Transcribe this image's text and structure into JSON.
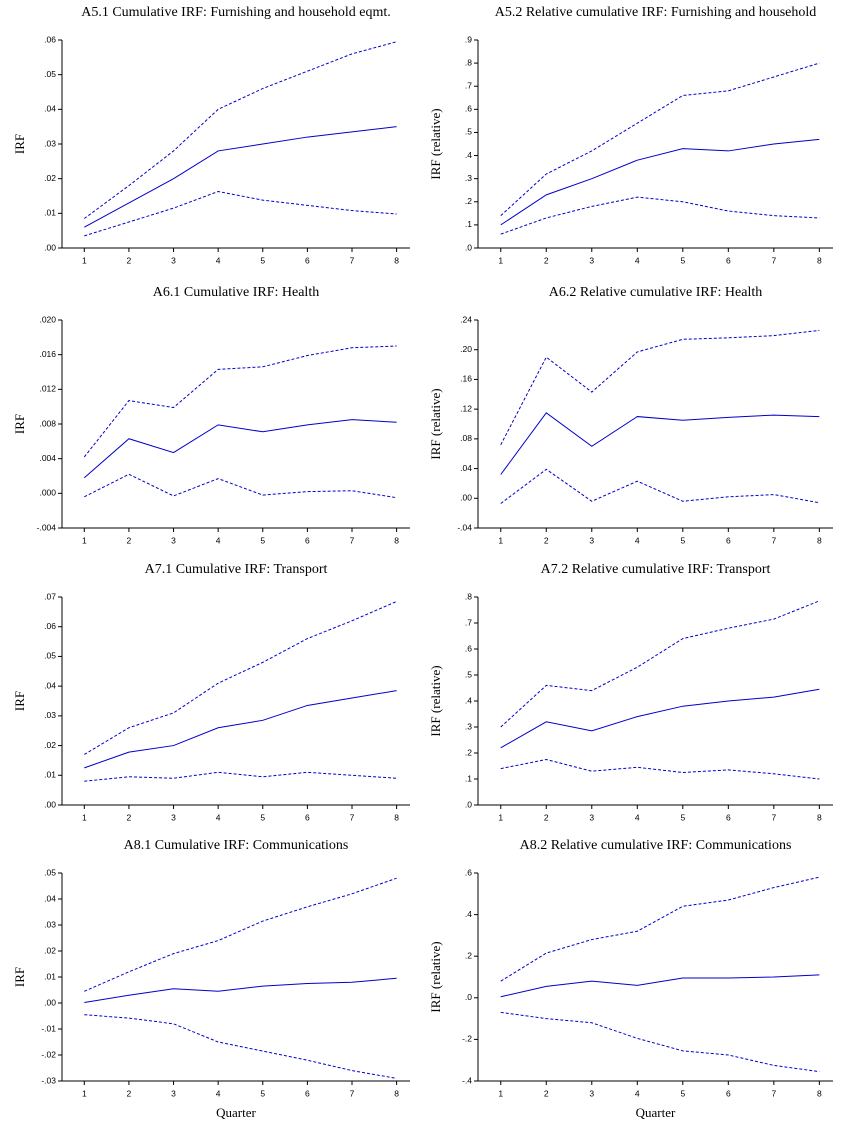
{
  "chart_data": [
    {
      "type": "line",
      "title": "A5.1 Cumulative IRF: Furnishing and household eqmt.",
      "ylabel": "IRF",
      "x": [
        1,
        2,
        3,
        4,
        5,
        6,
        7,
        8
      ],
      "xlim": [
        0.5,
        8.3
      ],
      "xticks": [
        1,
        2,
        3,
        4,
        5,
        6,
        7,
        8
      ],
      "ylim": [
        0,
        0.06
      ],
      "yticks": [
        {
          "value": 0,
          "label": ".00"
        },
        {
          "value": 0.01,
          "label": ".01"
        },
        {
          "value": 0.02,
          "label": ".02"
        },
        {
          "value": 0.03,
          "label": ".03"
        },
        {
          "value": 0.04,
          "label": ".04"
        },
        {
          "value": 0.05,
          "label": ".05"
        },
        {
          "value": 0.06,
          "label": ".06"
        }
      ],
      "series": [
        {
          "color": "#0000cc",
          "dash": false,
          "values": [
            0.006,
            0.013,
            0.02,
            0.028,
            0.03,
            0.032,
            0.0335,
            0.035
          ]
        },
        {
          "color": "#0000cc",
          "dash": true,
          "values": [
            0.0085,
            0.018,
            0.028,
            0.04,
            0.046,
            0.051,
            0.056,
            0.0595
          ]
        },
        {
          "color": "#0000cc",
          "dash": true,
          "values": [
            0.0035,
            0.0075,
            0.0115,
            0.0163,
            0.0138,
            0.0123,
            0.0108,
            0.0098
          ]
        }
      ]
    },
    {
      "type": "line",
      "title": "A5.2 Relative cumulative IRF: Furnishing and household",
      "ylabel": "IRF (relative)",
      "x": [
        1,
        2,
        3,
        4,
        5,
        6,
        7,
        8
      ],
      "xlim": [
        0.5,
        8.3
      ],
      "xticks": [
        1,
        2,
        3,
        4,
        5,
        6,
        7,
        8
      ],
      "ylim": [
        0,
        0.9
      ],
      "yticks": [
        {
          "value": 0,
          "label": ".0"
        },
        {
          "value": 0.1,
          "label": ".1"
        },
        {
          "value": 0.2,
          "label": ".2"
        },
        {
          "value": 0.3,
          "label": ".3"
        },
        {
          "value": 0.4,
          "label": ".4"
        },
        {
          "value": 0.5,
          "label": ".5"
        },
        {
          "value": 0.6,
          "label": ".6"
        },
        {
          "value": 0.7,
          "label": ".7"
        },
        {
          "value": 0.8,
          "label": ".8"
        },
        {
          "value": 0.9,
          "label": ".9"
        }
      ],
      "series": [
        {
          "color": "#0000cc",
          "dash": false,
          "values": [
            0.1,
            0.23,
            0.3,
            0.38,
            0.43,
            0.42,
            0.45,
            0.47
          ]
        },
        {
          "color": "#0000cc",
          "dash": true,
          "values": [
            0.14,
            0.32,
            0.42,
            0.54,
            0.66,
            0.68,
            0.74,
            0.8
          ]
        },
        {
          "color": "#0000cc",
          "dash": true,
          "values": [
            0.06,
            0.13,
            0.18,
            0.22,
            0.2,
            0.16,
            0.14,
            0.13
          ]
        }
      ]
    },
    {
      "type": "line",
      "title": "A6.1 Cumulative IRF: Health",
      "ylabel": "IRF",
      "x": [
        1,
        2,
        3,
        4,
        5,
        6,
        7,
        8
      ],
      "xlim": [
        0.5,
        8.3
      ],
      "xticks": [
        1,
        2,
        3,
        4,
        5,
        6,
        7,
        8
      ],
      "ylim": [
        -0.004,
        0.02
      ],
      "yticks": [
        {
          "value": -0.004,
          "label": "-.004"
        },
        {
          "value": 0,
          "label": ".000"
        },
        {
          "value": 0.004,
          "label": ".004"
        },
        {
          "value": 0.008,
          "label": ".008"
        },
        {
          "value": 0.012,
          "label": ".012"
        },
        {
          "value": 0.016,
          "label": ".016"
        },
        {
          "value": 0.02,
          "label": ".020"
        }
      ],
      "series": [
        {
          "color": "#0000cc",
          "dash": false,
          "values": [
            0.0018,
            0.0063,
            0.0047,
            0.0079,
            0.0071,
            0.0079,
            0.0085,
            0.0082
          ]
        },
        {
          "color": "#0000cc",
          "dash": true,
          "values": [
            0.0042,
            0.0107,
            0.0099,
            0.0143,
            0.0146,
            0.0159,
            0.0168,
            0.017
          ]
        },
        {
          "color": "#0000cc",
          "dash": true,
          "values": [
            -0.0004,
            0.0022,
            -0.0003,
            0.0017,
            -0.0002,
            0.0002,
            0.0003,
            -0.0005
          ]
        }
      ]
    },
    {
      "type": "line",
      "title": "A6.2 Relative cumulative IRF: Health",
      "ylabel": "IRF (relative)",
      "x": [
        1,
        2,
        3,
        4,
        5,
        6,
        7,
        8
      ],
      "xlim": [
        0.5,
        8.3
      ],
      "xticks": [
        1,
        2,
        3,
        4,
        5,
        6,
        7,
        8
      ],
      "ylim": [
        -0.04,
        0.24
      ],
      "yticks": [
        {
          "value": -0.04,
          "label": "-.04"
        },
        {
          "value": 0,
          "label": ".00"
        },
        {
          "value": 0.04,
          "label": ".04"
        },
        {
          "value": 0.08,
          "label": ".08"
        },
        {
          "value": 0.12,
          "label": ".12"
        },
        {
          "value": 0.16,
          "label": ".16"
        },
        {
          "value": 0.2,
          "label": ".20"
        },
        {
          "value": 0.24,
          "label": ".24"
        }
      ],
      "series": [
        {
          "color": "#0000cc",
          "dash": false,
          "values": [
            0.032,
            0.115,
            0.07,
            0.11,
            0.105,
            0.109,
            0.112,
            0.11
          ]
        },
        {
          "color": "#0000cc",
          "dash": true,
          "values": [
            0.072,
            0.19,
            0.143,
            0.197,
            0.214,
            0.216,
            0.219,
            0.226
          ]
        },
        {
          "color": "#0000cc",
          "dash": true,
          "values": [
            -0.007,
            0.039,
            -0.004,
            0.023,
            -0.004,
            0.002,
            0.005,
            -0.006
          ]
        }
      ]
    },
    {
      "type": "line",
      "title": "A7.1 Cumulative IRF: Transport",
      "ylabel": "IRF",
      "x": [
        1,
        2,
        3,
        4,
        5,
        6,
        7,
        8
      ],
      "xlim": [
        0.5,
        8.3
      ],
      "xticks": [
        1,
        2,
        3,
        4,
        5,
        6,
        7,
        8
      ],
      "ylim": [
        0,
        0.07
      ],
      "yticks": [
        {
          "value": 0,
          "label": ".00"
        },
        {
          "value": 0.01,
          "label": ".01"
        },
        {
          "value": 0.02,
          "label": ".02"
        },
        {
          "value": 0.03,
          "label": ".03"
        },
        {
          "value": 0.04,
          "label": ".04"
        },
        {
          "value": 0.05,
          "label": ".05"
        },
        {
          "value": 0.06,
          "label": ".06"
        },
        {
          "value": 0.07,
          "label": ".07"
        }
      ],
      "series": [
        {
          "color": "#0000cc",
          "dash": false,
          "values": [
            0.0125,
            0.0178,
            0.02,
            0.026,
            0.0285,
            0.0335,
            0.036,
            0.0385
          ]
        },
        {
          "color": "#0000cc",
          "dash": true,
          "values": [
            0.017,
            0.026,
            0.031,
            0.041,
            0.048,
            0.056,
            0.062,
            0.0685
          ]
        },
        {
          "color": "#0000cc",
          "dash": true,
          "values": [
            0.008,
            0.0095,
            0.009,
            0.011,
            0.0095,
            0.011,
            0.01,
            0.009
          ]
        }
      ]
    },
    {
      "type": "line",
      "title": "A7.2 Relative cumulative IRF: Transport",
      "ylabel": "IRF (relative)",
      "x": [
        1,
        2,
        3,
        4,
        5,
        6,
        7,
        8
      ],
      "xlim": [
        0.5,
        8.3
      ],
      "xticks": [
        1,
        2,
        3,
        4,
        5,
        6,
        7,
        8
      ],
      "ylim": [
        0,
        0.8
      ],
      "yticks": [
        {
          "value": 0,
          "label": ".0"
        },
        {
          "value": 0.1,
          "label": ".1"
        },
        {
          "value": 0.2,
          "label": ".2"
        },
        {
          "value": 0.3,
          "label": ".3"
        },
        {
          "value": 0.4,
          "label": ".4"
        },
        {
          "value": 0.5,
          "label": ".5"
        },
        {
          "value": 0.6,
          "label": ".6"
        },
        {
          "value": 0.7,
          "label": ".7"
        },
        {
          "value": 0.8,
          "label": ".8"
        }
      ],
      "series": [
        {
          "color": "#0000cc",
          "dash": false,
          "values": [
            0.22,
            0.32,
            0.285,
            0.34,
            0.38,
            0.4,
            0.415,
            0.445
          ]
        },
        {
          "color": "#0000cc",
          "dash": true,
          "values": [
            0.3,
            0.46,
            0.44,
            0.53,
            0.64,
            0.68,
            0.715,
            0.785
          ]
        },
        {
          "color": "#0000cc",
          "dash": true,
          "values": [
            0.14,
            0.175,
            0.13,
            0.145,
            0.125,
            0.135,
            0.12,
            0.1
          ]
        }
      ]
    },
    {
      "type": "line",
      "title": "A8.1 Cumulative IRF: Communications",
      "ylabel": "IRF",
      "xlabel": "Quarter",
      "x": [
        1,
        2,
        3,
        4,
        5,
        6,
        7,
        8
      ],
      "xlim": [
        0.5,
        8.3
      ],
      "xticks": [
        1,
        2,
        3,
        4,
        5,
        6,
        7,
        8
      ],
      "ylim": [
        -0.03,
        0.05
      ],
      "yticks": [
        {
          "value": -0.03,
          "label": "-.03"
        },
        {
          "value": -0.02,
          "label": "-.02"
        },
        {
          "value": -0.01,
          "label": "-.01"
        },
        {
          "value": 0,
          "label": ".00"
        },
        {
          "value": 0.01,
          "label": ".01"
        },
        {
          "value": 0.02,
          "label": ".02"
        },
        {
          "value": 0.03,
          "label": ".03"
        },
        {
          "value": 0.04,
          "label": ".04"
        },
        {
          "value": 0.05,
          "label": ".05"
        }
      ],
      "series": [
        {
          "color": "#0000cc",
          "dash": false,
          "values": [
            0.0002,
            0.003,
            0.0055,
            0.0045,
            0.0065,
            0.0075,
            0.008,
            0.0095
          ]
        },
        {
          "color": "#0000cc",
          "dash": true,
          "values": [
            0.0045,
            0.012,
            0.019,
            0.024,
            0.0315,
            0.037,
            0.042,
            0.048
          ]
        },
        {
          "color": "#0000cc",
          "dash": true,
          "values": [
            -0.0045,
            -0.0058,
            -0.008,
            -0.015,
            -0.0185,
            -0.022,
            -0.026,
            -0.029
          ]
        }
      ]
    },
    {
      "type": "line",
      "title": "A8.2 Relative cumulative IRF: Communications",
      "ylabel": "IRF (relative)",
      "xlabel": "Quarter",
      "x": [
        1,
        2,
        3,
        4,
        5,
        6,
        7,
        8
      ],
      "xlim": [
        0.5,
        8.3
      ],
      "xticks": [
        1,
        2,
        3,
        4,
        5,
        6,
        7,
        8
      ],
      "ylim": [
        -0.4,
        0.6
      ],
      "yticks": [
        {
          "value": -0.4,
          "label": "-.4"
        },
        {
          "value": -0.2,
          "label": "-.2"
        },
        {
          "value": 0,
          "label": ".0"
        },
        {
          "value": 0.2,
          "label": ".2"
        },
        {
          "value": 0.4,
          "label": ".4"
        },
        {
          "value": 0.6,
          "label": ".6"
        }
      ],
      "series": [
        {
          "color": "#0000cc",
          "dash": false,
          "values": [
            0.005,
            0.055,
            0.08,
            0.06,
            0.095,
            0.095,
            0.1,
            0.11
          ]
        },
        {
          "color": "#0000cc",
          "dash": true,
          "values": [
            0.08,
            0.215,
            0.28,
            0.32,
            0.44,
            0.47,
            0.53,
            0.58
          ]
        },
        {
          "color": "#0000cc",
          "dash": true,
          "values": [
            -0.07,
            -0.1,
            -0.12,
            -0.195,
            -0.255,
            -0.275,
            -0.325,
            -0.355
          ]
        }
      ]
    }
  ]
}
